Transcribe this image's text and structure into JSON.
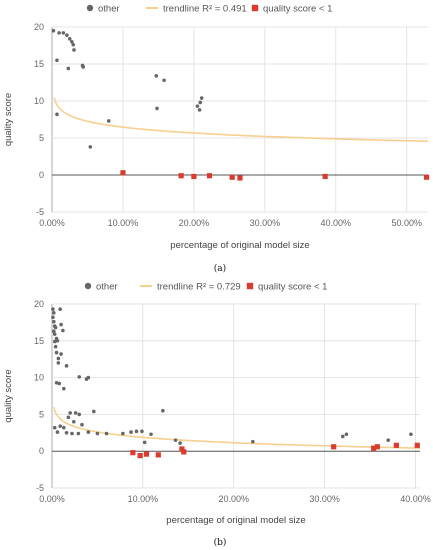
{
  "colors": {
    "other": "#666666",
    "trendline": "#f7cf8e",
    "low_quality": "#db3a2e",
    "grid": "#dddddd",
    "axis": "#999999"
  },
  "chart_data": [
    {
      "type": "scatter",
      "caption": "(a)",
      "legend": {
        "position": "top",
        "other": "other",
        "trendline": "trendline R² = 0.491",
        "low_quality": "quality score < 1"
      },
      "xlabel": "percentage of original model size",
      "ylabel": "quality score",
      "xlim": [
        0,
        53
      ],
      "ylim": [
        -5,
        20
      ],
      "xticks": [
        0,
        10,
        20,
        30,
        40,
        50
      ],
      "xtick_labels": [
        "0.00%",
        "10.00%",
        "20.00%",
        "30.00%",
        "40.00%",
        "50.00%"
      ],
      "yticks": [
        -5,
        0,
        5,
        10,
        15,
        20
      ],
      "ytick_labels": [
        "-5",
        "0",
        "5",
        "10",
        "15",
        "20"
      ],
      "grid": true,
      "trendline": {
        "form": "logarithmic",
        "a": 9.09,
        "b": -1.14,
        "x_start": 0.3,
        "x_end": 53
      },
      "series": [
        {
          "name": "other",
          "marker": "circle",
          "points": [
            [
              0.2,
              19.5
            ],
            [
              1.0,
              19.2
            ],
            [
              1.6,
              19.2
            ],
            [
              2.1,
              18.9
            ],
            [
              2.5,
              18.4
            ],
            [
              2.8,
              18.0
            ],
            [
              3.0,
              17.6
            ],
            [
              3.1,
              16.9
            ],
            [
              2.3,
              14.4
            ],
            [
              4.3,
              14.8
            ],
            [
              4.4,
              14.6
            ],
            [
              0.7,
              15.5
            ],
            [
              0.7,
              8.2
            ],
            [
              8.0,
              7.3
            ],
            [
              5.4,
              3.8
            ],
            [
              14.7,
              13.4
            ],
            [
              15.8,
              12.8
            ],
            [
              21.1,
              10.4
            ],
            [
              20.9,
              9.8
            ],
            [
              20.5,
              9.3
            ],
            [
              20.8,
              8.8
            ],
            [
              14.8,
              9.0
            ]
          ]
        },
        {
          "name": "quality score < 1",
          "marker": "square",
          "points": [
            [
              10.0,
              0.3
            ],
            [
              18.2,
              -0.1
            ],
            [
              20.0,
              -0.2
            ],
            [
              22.2,
              -0.1
            ],
            [
              25.4,
              -0.3
            ],
            [
              26.5,
              -0.4
            ],
            [
              38.5,
              -0.2
            ],
            [
              52.8,
              -0.3
            ]
          ]
        }
      ]
    },
    {
      "type": "scatter",
      "caption": "(b)",
      "legend": {
        "position": "top",
        "other": "other",
        "trendline": "trendline R² = 0.729",
        "low_quality": "quality score < 1"
      },
      "xlabel": "percentage of original model size",
      "ylabel": "quality score",
      "xlim": [
        0,
        40.5
      ],
      "ylim": [
        -5,
        20
      ],
      "xticks": [
        0,
        10,
        20,
        30,
        40
      ],
      "xtick_labels": [
        "0.00%",
        "10.00%",
        "20.00%",
        "30.00%",
        "40.00%"
      ],
      "yticks": [
        -5,
        0,
        5,
        10,
        15,
        20
      ],
      "ytick_labels": [
        "-5",
        "0",
        "5",
        "10",
        "15",
        "20"
      ],
      "grid": true,
      "trendline": {
        "form": "logarithmic",
        "a": 4.3,
        "b": -1.05,
        "x_start": 0.2,
        "x_end": 40.5
      },
      "series": [
        {
          "name": "other",
          "marker": "circle",
          "points": [
            [
              0.1,
              19.3
            ],
            [
              0.2,
              18.8
            ],
            [
              0.1,
              18.2
            ],
            [
              0.2,
              17.6
            ],
            [
              0.3,
              17.0
            ],
            [
              0.4,
              16.8
            ],
            [
              0.2,
              16.3
            ],
            [
              0.3,
              15.9
            ],
            [
              0.5,
              15.3
            ],
            [
              0.6,
              15.0
            ],
            [
              0.9,
              19.3
            ],
            [
              1.0,
              17.2
            ],
            [
              1.2,
              16.4
            ],
            [
              0.3,
              14.9
            ],
            [
              0.4,
              14.2
            ],
            [
              0.5,
              13.4
            ],
            [
              0.7,
              12.6
            ],
            [
              1.0,
              13.2
            ],
            [
              1.6,
              11.6
            ],
            [
              0.7,
              12.0
            ],
            [
              3.0,
              10.1
            ],
            [
              3.8,
              9.8
            ],
            [
              4.0,
              10.0
            ],
            [
              0.5,
              9.3
            ],
            [
              0.8,
              9.2
            ],
            [
              1.3,
              8.5
            ],
            [
              0.3,
              3.2
            ],
            [
              0.6,
              2.6
            ],
            [
              0.9,
              3.4
            ],
            [
              1.3,
              3.2
            ],
            [
              1.8,
              4.6
            ],
            [
              2.0,
              5.2
            ],
            [
              2.4,
              4.0
            ],
            [
              2.6,
              5.2
            ],
            [
              3.0,
              5.0
            ],
            [
              3.3,
              3.6
            ],
            [
              4.6,
              5.4
            ],
            [
              1.6,
              2.5
            ],
            [
              2.2,
              2.4
            ],
            [
              2.9,
              2.4
            ],
            [
              4.0,
              2.6
            ],
            [
              5.0,
              2.4
            ],
            [
              6.0,
              2.4
            ],
            [
              7.8,
              2.4
            ],
            [
              8.7,
              2.6
            ],
            [
              9.3,
              2.7
            ],
            [
              9.9,
              2.7
            ],
            [
              10.9,
              2.3
            ],
            [
              12.2,
              5.5
            ],
            [
              13.6,
              1.5
            ],
            [
              14.1,
              1.1
            ],
            [
              22.1,
              1.3
            ],
            [
              32.0,
              2.0
            ],
            [
              32.4,
              2.3
            ],
            [
              37.0,
              1.5
            ],
            [
              39.5,
              2.3
            ],
            [
              10.2,
              1.2
            ]
          ]
        },
        {
          "name": "quality score < 1",
          "marker": "square",
          "points": [
            [
              8.9,
              -0.2
            ],
            [
              9.7,
              -0.6
            ],
            [
              10.4,
              -0.4
            ],
            [
              11.7,
              -0.5
            ],
            [
              14.3,
              0.3
            ],
            [
              14.5,
              -0.1
            ],
            [
              31.0,
              0.6
            ],
            [
              35.4,
              0.4
            ],
            [
              35.8,
              0.6
            ],
            [
              37.9,
              0.8
            ],
            [
              40.2,
              0.8
            ]
          ]
        }
      ]
    }
  ]
}
